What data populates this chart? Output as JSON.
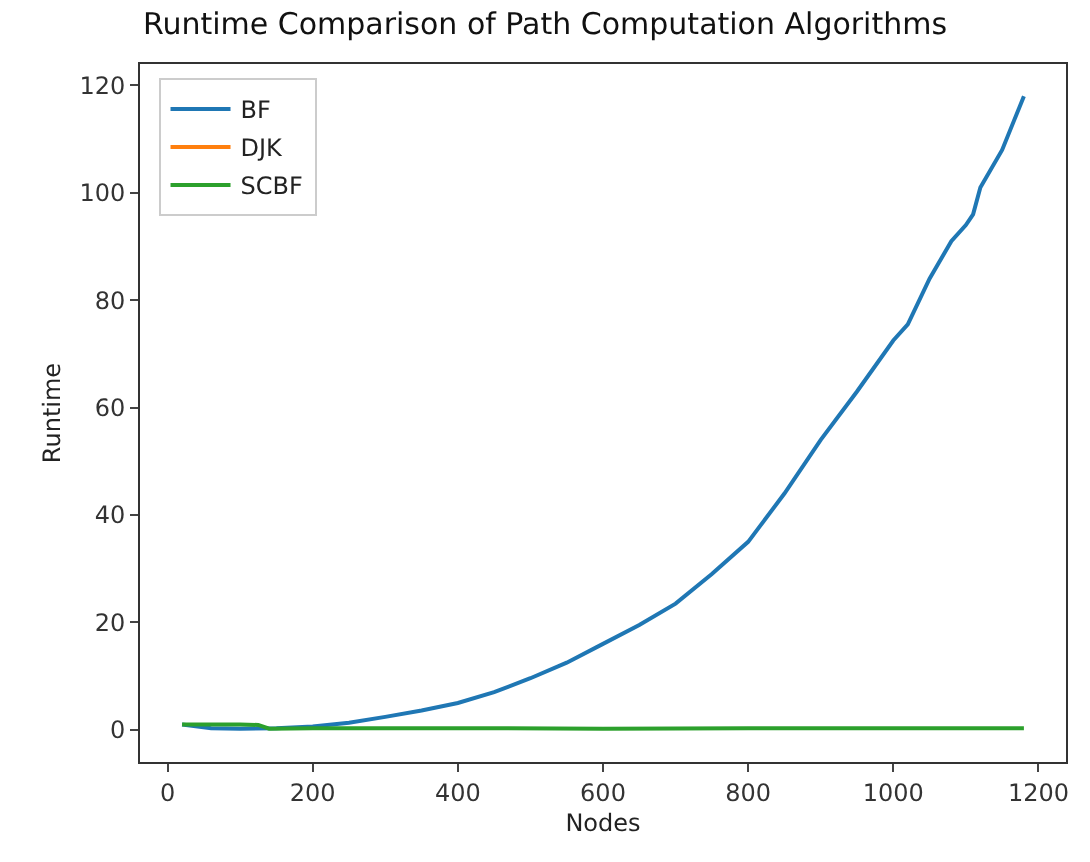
{
  "chart_data": {
    "type": "line",
    "title": "Runtime Comparison of Path Computation Algorithms",
    "xlabel": "Nodes",
    "ylabel": "Runtime",
    "xlim": [
      -38,
      1238
    ],
    "ylim": [
      -6,
      124
    ],
    "xticks": [
      0,
      200,
      400,
      600,
      800,
      1000,
      1200
    ],
    "yticks": [
      0,
      20,
      40,
      60,
      80,
      100,
      120
    ],
    "legend": "top left",
    "marker": "none",
    "line_style": "solid",
    "series": [
      {
        "name": "BF",
        "color": "#1f77b4",
        "x": [
          20,
          60,
          100,
          150,
          200,
          250,
          300,
          350,
          400,
          450,
          500,
          550,
          600,
          650,
          700,
          750,
          800,
          850,
          900,
          950,
          1000,
          1020,
          1050,
          1080,
          1100,
          1110,
          1120,
          1150,
          1180
        ],
        "values": [
          1,
          0.3,
          0.2,
          0.3,
          0.6,
          1.3,
          2.4,
          3.6,
          5,
          7,
          9.6,
          12.5,
          16,
          19.5,
          23.5,
          29,
          35,
          44,
          54,
          63,
          72.5,
          75.5,
          84,
          91,
          94,
          96,
          101,
          108,
          118
        ]
      },
      {
        "name": "DJK",
        "color": "#ff7f0e",
        "line_style": "solid"
      },
      {
        "name": "SCBF",
        "color": "#2ca02c",
        "x": [
          20,
          60,
          100,
          125,
          140,
          200,
          400,
          600,
          800,
          1000,
          1180
        ],
        "values": [
          1,
          1,
          1,
          0.9,
          0.2,
          0.3,
          0.3,
          0.2,
          0.3,
          0.3,
          0.3
        ]
      }
    ]
  }
}
